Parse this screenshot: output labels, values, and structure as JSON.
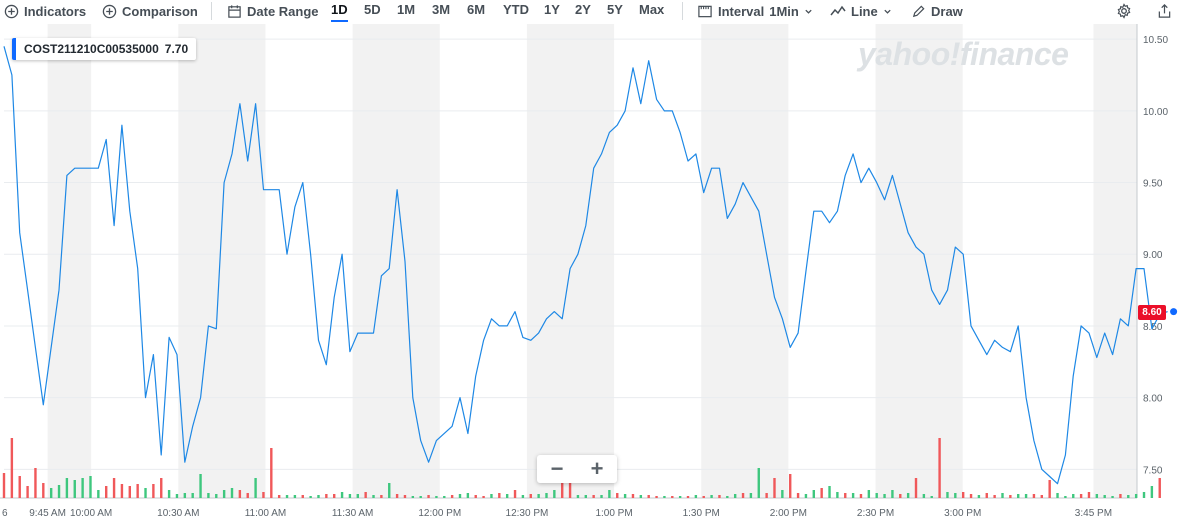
{
  "toolbar": {
    "indicators": "Indicators",
    "comparison": "Comparison",
    "date_range": "Date Range",
    "ranges": [
      "1D",
      "5D",
      "1M",
      "3M",
      "6M",
      "YTD",
      "1Y",
      "2Y",
      "5Y",
      "Max"
    ],
    "active_range": "1D",
    "interval_label": "Interval",
    "interval_value": "1Min",
    "chart_type": "Line",
    "draw": "Draw"
  },
  "symbol": {
    "name": "COST211210C00535000",
    "value": "7.70"
  },
  "watermark": "yahoo!finance",
  "zoom": {
    "minus": "−",
    "plus": "+"
  },
  "last_price": "8.60",
  "colors": {
    "line": "#1e88e5",
    "up": "#3ec77e",
    "down": "#f0585a",
    "flag": "#eb0f29",
    "band": "#f2f2f2"
  },
  "chart_data": {
    "type": "line",
    "ylim": [
      7.3,
      10.55
    ],
    "y_ticks": [
      "10.50",
      "10.00",
      "9.50",
      "9.00",
      "8.50",
      "8.00",
      "7.50"
    ],
    "y_tick_values": [
      10.5,
      10.0,
      9.5,
      9.0,
      8.5,
      8.0,
      7.5
    ],
    "x_start_label": "6",
    "x_tick_labels": [
      "9:45 AM",
      "10:00 AM",
      "10:30 AM",
      "11:00 AM",
      "11:30 AM",
      "12:00 PM",
      "12:30 PM",
      "1:00 PM",
      "1:30 PM",
      "2:00 PM",
      "2:30 PM",
      "3:00 PM",
      "3:45 PM"
    ],
    "x_tick_minutes": [
      15,
      30,
      60,
      90,
      120,
      150,
      180,
      210,
      240,
      270,
      300,
      330,
      375
    ],
    "x_range_minutes": [
      0,
      390
    ],
    "series": [
      {
        "values": [
          [
            0,
            10.45
          ],
          [
            1,
            10.25
          ],
          [
            2,
            9.15
          ],
          [
            3,
            8.75
          ],
          [
            4,
            8.35
          ],
          [
            5,
            7.95
          ],
          [
            7,
            8.75
          ],
          [
            8,
            9.55
          ],
          [
            9,
            9.6
          ],
          [
            11,
            9.6
          ],
          [
            12,
            9.6
          ],
          [
            13,
            9.8
          ],
          [
            14,
            9.2
          ],
          [
            15,
            9.9
          ],
          [
            16,
            9.3
          ],
          [
            17,
            8.9
          ],
          [
            18,
            8.0
          ],
          [
            19,
            8.3
          ],
          [
            20,
            7.6
          ],
          [
            21,
            8.42
          ],
          [
            22,
            8.3
          ],
          [
            23,
            7.55
          ],
          [
            24,
            7.8
          ],
          [
            25,
            8.0
          ],
          [
            26,
            8.5
          ],
          [
            27,
            8.48
          ],
          [
            28,
            9.5
          ],
          [
            29,
            9.7
          ],
          [
            30,
            10.05
          ],
          [
            31,
            9.65
          ],
          [
            32,
            10.05
          ],
          [
            33,
            9.45
          ],
          [
            35,
            9.45
          ],
          [
            36,
            9.0
          ],
          [
            37,
            9.33
          ],
          [
            38,
            9.5
          ],
          [
            39,
            9.0
          ],
          [
            40,
            8.4
          ],
          [
            41,
            8.23
          ],
          [
            42,
            8.7
          ],
          [
            43,
            9.0
          ],
          [
            44,
            8.32
          ],
          [
            45,
            8.45
          ],
          [
            47,
            8.45
          ],
          [
            48,
            8.85
          ],
          [
            49,
            8.9
          ],
          [
            50,
            9.45
          ],
          [
            51,
            8.95
          ],
          [
            52,
            8.0
          ],
          [
            53,
            7.7
          ],
          [
            54,
            7.55
          ],
          [
            55,
            7.7
          ],
          [
            57,
            7.8
          ],
          [
            58,
            8.0
          ],
          [
            59,
            7.75
          ],
          [
            60,
            8.15
          ],
          [
            61,
            8.4
          ],
          [
            62,
            8.55
          ],
          [
            63,
            8.5
          ],
          [
            64,
            8.5
          ],
          [
            65,
            8.6
          ],
          [
            66,
            8.42
          ],
          [
            67,
            8.4
          ],
          [
            68,
            8.45
          ],
          [
            69,
            8.55
          ],
          [
            70,
            8.6
          ],
          [
            71,
            8.55
          ],
          [
            72,
            8.9
          ],
          [
            73,
            9.0
          ],
          [
            74,
            9.2
          ],
          [
            75,
            9.6
          ],
          [
            76,
            9.7
          ],
          [
            77,
            9.85
          ],
          [
            78,
            9.9
          ],
          [
            79,
            10.0
          ],
          [
            80,
            10.3
          ],
          [
            81,
            10.05
          ],
          [
            82,
            10.35
          ],
          [
            83,
            10.08
          ],
          [
            84,
            10.0
          ],
          [
            85,
            10.0
          ],
          [
            86,
            9.85
          ],
          [
            87,
            9.65
          ],
          [
            88,
            9.7
          ],
          [
            89,
            9.43
          ],
          [
            90,
            9.6
          ],
          [
            91,
            9.6
          ],
          [
            92,
            9.25
          ],
          [
            93,
            9.35
          ],
          [
            94,
            9.5
          ],
          [
            95,
            9.4
          ],
          [
            96,
            9.3
          ],
          [
            97,
            9.0
          ],
          [
            98,
            8.7
          ],
          [
            99,
            8.55
          ],
          [
            100,
            8.35
          ],
          [
            101,
            8.45
          ],
          [
            102,
            8.88
          ],
          [
            103,
            9.3
          ],
          [
            104,
            9.3
          ],
          [
            105,
            9.22
          ],
          [
            106,
            9.3
          ],
          [
            107,
            9.55
          ],
          [
            108,
            9.7
          ],
          [
            109,
            9.5
          ],
          [
            110,
            9.6
          ],
          [
            111,
            9.5
          ],
          [
            112,
            9.38
          ],
          [
            113,
            9.55
          ],
          [
            114,
            9.35
          ],
          [
            115,
            9.15
          ],
          [
            116,
            9.05
          ],
          [
            117,
            9.0
          ],
          [
            118,
            8.75
          ],
          [
            119,
            8.65
          ],
          [
            120,
            8.75
          ],
          [
            121,
            9.05
          ],
          [
            122,
            9.0
          ],
          [
            123,
            8.5
          ],
          [
            124,
            8.4
          ],
          [
            125,
            8.3
          ],
          [
            126,
            8.4
          ],
          [
            127,
            8.35
          ],
          [
            128,
            8.32
          ],
          [
            129,
            8.5
          ],
          [
            130,
            8.0
          ],
          [
            131,
            7.7
          ],
          [
            132,
            7.5
          ],
          [
            133,
            7.45
          ],
          [
            134,
            7.4
          ],
          [
            135,
            7.6
          ],
          [
            136,
            8.15
          ],
          [
            137,
            8.5
          ],
          [
            138,
            8.45
          ],
          [
            139,
            8.28
          ],
          [
            140,
            8.45
          ],
          [
            141,
            8.3
          ],
          [
            142,
            8.55
          ],
          [
            143,
            8.5
          ],
          [
            144,
            8.9
          ],
          [
            145,
            8.9
          ],
          [
            146,
            8.48
          ],
          [
            147,
            8.58
          ],
          [
            148,
            8.6
          ]
        ]
      }
    ],
    "volume": {
      "values": [
        [
          0,
          0.25,
          "down"
        ],
        [
          1,
          0.6,
          "down"
        ],
        [
          2,
          0.22,
          "down"
        ],
        [
          3,
          0.12,
          "down"
        ],
        [
          4,
          0.3,
          "down"
        ],
        [
          5,
          0.15,
          "down"
        ],
        [
          6,
          0.1,
          "up"
        ],
        [
          7,
          0.13,
          "up"
        ],
        [
          8,
          0.2,
          "up"
        ],
        [
          9,
          0.18,
          "up"
        ],
        [
          10,
          0.2,
          "up"
        ],
        [
          11,
          0.22,
          "up"
        ],
        [
          12,
          0.08,
          "up"
        ],
        [
          13,
          0.12,
          "down"
        ],
        [
          14,
          0.2,
          "down"
        ],
        [
          15,
          0.14,
          "down"
        ],
        [
          16,
          0.12,
          "down"
        ],
        [
          17,
          0.14,
          "down"
        ],
        [
          18,
          0.1,
          "up"
        ],
        [
          19,
          0.14,
          "down"
        ],
        [
          20,
          0.2,
          "down"
        ],
        [
          21,
          0.08,
          "up"
        ],
        [
          22,
          0.04,
          "up"
        ],
        [
          23,
          0.05,
          "up"
        ],
        [
          24,
          0.05,
          "up"
        ],
        [
          25,
          0.24,
          "up"
        ],
        [
          26,
          0.05,
          "up"
        ],
        [
          27,
          0.04,
          "up"
        ],
        [
          28,
          0.08,
          "up"
        ],
        [
          29,
          0.1,
          "up"
        ],
        [
          30,
          0.08,
          "down"
        ],
        [
          31,
          0.05,
          "down"
        ],
        [
          32,
          0.2,
          "up"
        ],
        [
          33,
          0.06,
          "down"
        ],
        [
          34,
          0.5,
          "down"
        ],
        [
          35,
          0.03,
          "down"
        ],
        [
          36,
          0.03,
          "up"
        ],
        [
          37,
          0.03,
          "up"
        ],
        [
          38,
          0.03,
          "down"
        ],
        [
          39,
          0.02,
          "up"
        ],
        [
          40,
          0.03,
          "up"
        ],
        [
          41,
          0.04,
          "down"
        ],
        [
          42,
          0.04,
          "down"
        ],
        [
          43,
          0.06,
          "up"
        ],
        [
          44,
          0.04,
          "up"
        ],
        [
          45,
          0.04,
          "up"
        ],
        [
          46,
          0.06,
          "down"
        ],
        [
          47,
          0.03,
          "up"
        ],
        [
          48,
          0.03,
          "down"
        ],
        [
          49,
          0.15,
          "up"
        ],
        [
          50,
          0.04,
          "down"
        ],
        [
          51,
          0.03,
          "down"
        ],
        [
          52,
          0.02,
          "up"
        ],
        [
          53,
          0.02,
          "up"
        ],
        [
          54,
          0.03,
          "down"
        ],
        [
          55,
          0.02,
          "up"
        ],
        [
          56,
          0.02,
          "up"
        ],
        [
          57,
          0.03,
          "down"
        ],
        [
          58,
          0.04,
          "up"
        ],
        [
          59,
          0.05,
          "up"
        ],
        [
          60,
          0.03,
          "down"
        ],
        [
          61,
          0.02,
          "down"
        ],
        [
          62,
          0.04,
          "up"
        ],
        [
          63,
          0.05,
          "down"
        ],
        [
          64,
          0.04,
          "up"
        ],
        [
          65,
          0.08,
          "down"
        ],
        [
          66,
          0.03,
          "up"
        ],
        [
          67,
          0.04,
          "down"
        ],
        [
          68,
          0.04,
          "up"
        ],
        [
          69,
          0.05,
          "up"
        ],
        [
          70,
          0.08,
          "up"
        ],
        [
          71,
          0.16,
          "down"
        ],
        [
          72,
          0.22,
          "down"
        ],
        [
          73,
          0.03,
          "up"
        ],
        [
          74,
          0.03,
          "up"
        ],
        [
          75,
          0.03,
          "down"
        ],
        [
          76,
          0.03,
          "up"
        ],
        [
          77,
          0.08,
          "up"
        ],
        [
          78,
          0.05,
          "down"
        ],
        [
          79,
          0.04,
          "up"
        ],
        [
          80,
          0.04,
          "down"
        ],
        [
          81,
          0.03,
          "up"
        ],
        [
          82,
          0.03,
          "down"
        ],
        [
          83,
          0.02,
          "down"
        ],
        [
          84,
          0.02,
          "up"
        ],
        [
          85,
          0.02,
          "down"
        ],
        [
          86,
          0.02,
          "up"
        ],
        [
          87,
          0.02,
          "down"
        ],
        [
          88,
          0.03,
          "up"
        ],
        [
          89,
          0.02,
          "down"
        ],
        [
          90,
          0.03,
          "up"
        ],
        [
          91,
          0.03,
          "down"
        ],
        [
          92,
          0.02,
          "up"
        ],
        [
          93,
          0.04,
          "up"
        ],
        [
          94,
          0.05,
          "down"
        ],
        [
          95,
          0.05,
          "up"
        ],
        [
          96,
          0.3,
          "up"
        ],
        [
          97,
          0.05,
          "down"
        ],
        [
          98,
          0.2,
          "down"
        ],
        [
          99,
          0.08,
          "up"
        ],
        [
          100,
          0.24,
          "down"
        ],
        [
          101,
          0.05,
          "down"
        ],
        [
          102,
          0.04,
          "up"
        ],
        [
          103,
          0.08,
          "up"
        ],
        [
          104,
          0.1,
          "down"
        ],
        [
          105,
          0.12,
          "up"
        ],
        [
          106,
          0.06,
          "up"
        ],
        [
          107,
          0.05,
          "down"
        ],
        [
          108,
          0.05,
          "up"
        ],
        [
          109,
          0.04,
          "down"
        ],
        [
          110,
          0.08,
          "up"
        ],
        [
          111,
          0.05,
          "up"
        ],
        [
          112,
          0.04,
          "up"
        ],
        [
          113,
          0.08,
          "up"
        ],
        [
          114,
          0.04,
          "down"
        ],
        [
          115,
          0.05,
          "up"
        ],
        [
          116,
          0.2,
          "down"
        ],
        [
          117,
          0.04,
          "up"
        ],
        [
          118,
          0.02,
          "up"
        ],
        [
          119,
          0.6,
          "down"
        ],
        [
          120,
          0.06,
          "up"
        ],
        [
          121,
          0.05,
          "up"
        ],
        [
          122,
          0.06,
          "down"
        ],
        [
          123,
          0.04,
          "down"
        ],
        [
          124,
          0.03,
          "up"
        ],
        [
          125,
          0.05,
          "down"
        ],
        [
          126,
          0.03,
          "down"
        ],
        [
          127,
          0.05,
          "up"
        ],
        [
          128,
          0.03,
          "down"
        ],
        [
          129,
          0.04,
          "up"
        ],
        [
          130,
          0.04,
          "up"
        ],
        [
          131,
          0.04,
          "down"
        ],
        [
          132,
          0.03,
          "down"
        ],
        [
          133,
          0.18,
          "down"
        ],
        [
          134,
          0.05,
          "up"
        ],
        [
          135,
          0.02,
          "up"
        ],
        [
          136,
          0.04,
          "up"
        ],
        [
          137,
          0.04,
          "down"
        ],
        [
          138,
          0.06,
          "down"
        ],
        [
          139,
          0.04,
          "up"
        ],
        [
          140,
          0.03,
          "up"
        ],
        [
          141,
          0.02,
          "up"
        ],
        [
          142,
          0.04,
          "down"
        ],
        [
          143,
          0.03,
          "up"
        ],
        [
          144,
          0.04,
          "up"
        ],
        [
          145,
          0.06,
          "up"
        ],
        [
          146,
          0.12,
          "up"
        ],
        [
          147,
          0.2,
          "down"
        ]
      ]
    }
  }
}
